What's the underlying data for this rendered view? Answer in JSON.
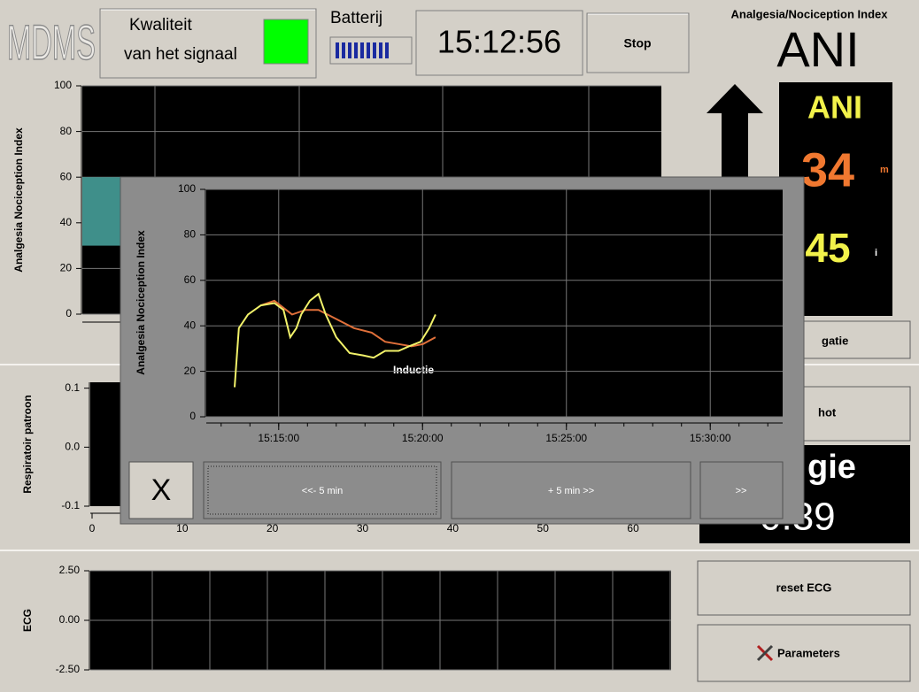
{
  "header": {
    "logo": "MDMS",
    "quality": [
      "Kwaliteit",
      "van het signaal"
    ],
    "battery": "Batterij",
    "time": "15:12:56",
    "stop": "Stop",
    "index_title": "Analgesia/Nociception Index",
    "index_short": "ANI"
  },
  "ani_panel": {
    "label": "ANI",
    "value": "34",
    "value_unit": "m",
    "value2": "45",
    "value2_unit": "i"
  },
  "side": {
    "nav_button": "gatie",
    "snap_button": "hot",
    "energy_label": "gie",
    "energy_value": "0:39",
    "reset_button": "reset ECG",
    "params_button": "Parameters"
  },
  "ani_chart": {
    "ylabel": "Analgesia Nociception Index",
    "ylim": [
      0,
      100
    ],
    "yticks": [
      0,
      20,
      40,
      60,
      80,
      100
    ],
    "grid": true,
    "target_band": [
      30,
      60
    ],
    "band_color": "#3f8f8a"
  },
  "resp_chart": {
    "ylabel": "Respiratoir patroon",
    "ylim": [
      -0.1,
      0.11
    ],
    "yticks": [
      0.1,
      {
        "value": 0,
        "label": "0.0"
      },
      -0.1
    ],
    "xlim": [
      0,
      65
    ],
    "xticks": [
      0,
      10,
      20,
      30,
      40,
      50,
      60
    ]
  },
  "ecg_chart": {
    "ylabel": "ECG",
    "ylim": [
      -2.5,
      2.5
    ],
    "yticks": [
      {
        "value": 2.5,
        "label": "2.50"
      },
      {
        "value": 0,
        "label": "0.00"
      },
      {
        "value": -2.5,
        "label": "-2.50"
      }
    ],
    "grid": true
  },
  "popup": {
    "chart": {
      "type": "line",
      "ylabel": "Analgesia Nociception Index",
      "ylim": [
        0,
        100
      ],
      "yticks": [
        0,
        20,
        40,
        60,
        80,
        100
      ],
      "xlim": [
        "15:12:29",
        "15:32:31"
      ],
      "xticks": [
        "15:15:00",
        "15:20:00",
        "15:25:00",
        "15:30:00"
      ],
      "grid": true,
      "annotation": "Inductie",
      "series": [
        {
          "color": "#f2f26a",
          "x": [
            "15:13:28",
            "15:13:37",
            "15:13:56",
            "15:14:23",
            "15:14:51",
            "15:15:10",
            "15:15:24",
            "15:15:37",
            "15:15:47",
            "15:16:05",
            "15:16:23",
            "15:16:38",
            "15:17:00",
            "15:17:28",
            "15:17:56",
            "15:18:18",
            "15:18:42",
            "15:19:10",
            "15:19:32",
            "15:19:56",
            "15:20:14",
            "15:20:27"
          ],
          "values": [
            13,
            39,
            45,
            49,
            50,
            47,
            35,
            39,
            45,
            51,
            54,
            45,
            35,
            28,
            27,
            26,
            29,
            29,
            31,
            33,
            39,
            45
          ]
        },
        {
          "color": "#e0703a",
          "x": [
            "15:14:23",
            "15:14:51",
            "15:15:28",
            "15:15:56",
            "15:16:23",
            "15:17:00",
            "15:17:37",
            "15:18:14",
            "15:18:42",
            "15:19:10",
            "15:19:37",
            "15:20:01",
            "15:20:27"
          ],
          "values": [
            49,
            51,
            45,
            47,
            47,
            43,
            39,
            37,
            33,
            32,
            31,
            32,
            35
          ]
        }
      ]
    },
    "buttons": [
      "X",
      "<<- 5 min",
      "+ 5 min >>",
      ">>"
    ]
  }
}
